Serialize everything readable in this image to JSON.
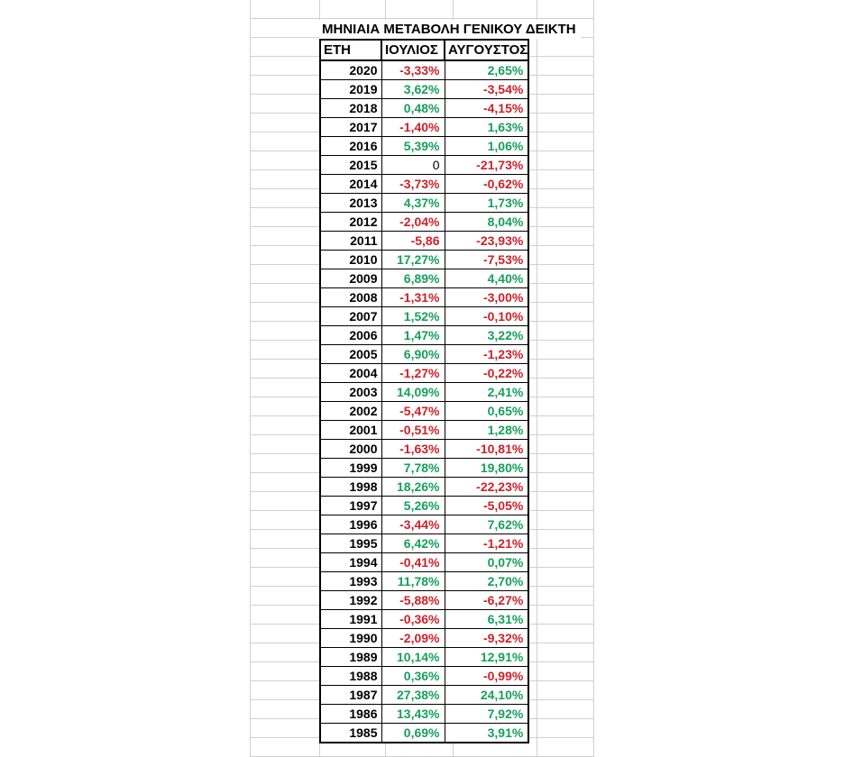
{
  "title": "ΜΗΝΙΑΙΑ ΜΕΤΑΒΟΛΗ ΓΕΝΙΚΟΥ ΔΕΙΚΤΗ",
  "columns": [
    "ΕΤΗ",
    "ΙΟΥΛΙΟΣ",
    "ΑΥΓΟΥΣΤΟΣ"
  ],
  "colors": {
    "positive": "#16A05A",
    "negative": "#CE2129",
    "neutral": "#000000",
    "gridline": "#D0D0D0",
    "border": "#000000"
  },
  "rows": [
    {
      "year": "2020",
      "july": "-3,33%",
      "august": "2,65%"
    },
    {
      "year": "2019",
      "july": "3,62%",
      "august": "-3,54%"
    },
    {
      "year": "2018",
      "july": "0,48%",
      "august": "-4,15%"
    },
    {
      "year": "2017",
      "july": "-1,40%",
      "august": "1,63%"
    },
    {
      "year": "2016",
      "july": "5,39%",
      "august": "1,06%"
    },
    {
      "year": "2015",
      "july": "0",
      "august": "-21,73%"
    },
    {
      "year": "2014",
      "july": "-3,73%",
      "august": "-0,62%"
    },
    {
      "year": "2013",
      "july": "4,37%",
      "august": "1,73%"
    },
    {
      "year": "2012",
      "july": "-2,04%",
      "august": "8,04%"
    },
    {
      "year": "2011",
      "july": "-5,86",
      "august": "-23,93%"
    },
    {
      "year": "2010",
      "july": "17,27%",
      "august": "-7,53%"
    },
    {
      "year": "2009",
      "july": "6,89%",
      "august": "4,40%"
    },
    {
      "year": "2008",
      "july": "-1,31%",
      "august": "-3,00%"
    },
    {
      "year": "2007",
      "july": "1,52%",
      "august": "-0,10%"
    },
    {
      "year": "2006",
      "july": "1,47%",
      "august": "3,22%"
    },
    {
      "year": "2005",
      "july": "6,90%",
      "august": "-1,23%"
    },
    {
      "year": "2004",
      "july": "-1,27%",
      "august": "-0,22%"
    },
    {
      "year": "2003",
      "july": "14,09%",
      "august": "2,41%"
    },
    {
      "year": "2002",
      "july": "-5,47%",
      "august": "0,65%"
    },
    {
      "year": "2001",
      "july": "-0,51%",
      "august": "1,28%"
    },
    {
      "year": "2000",
      "july": "-1,63%",
      "august": "-10,81%"
    },
    {
      "year": "1999",
      "july": "7,78%",
      "august": "19,80%"
    },
    {
      "year": "1998",
      "july": "18,26%",
      "august": "-22,23%"
    },
    {
      "year": "1997",
      "july": "5,26%",
      "august": "-5,05%"
    },
    {
      "year": "1996",
      "july": "-3,44%",
      "august": "7,62%"
    },
    {
      "year": "1995",
      "july": "6,42%",
      "august": "-1,21%"
    },
    {
      "year": "1994",
      "july": "-0,41%",
      "august": "0,07%"
    },
    {
      "year": "1993",
      "july": "11,78%",
      "august": "2,70%"
    },
    {
      "year": "1992",
      "july": "-5,88%",
      "august": "-6,27%"
    },
    {
      "year": "1991",
      "july": "-0,36%",
      "august": "6,31%"
    },
    {
      "year": "1990",
      "july": "-2,09%",
      "august": "-9,32%"
    },
    {
      "year": "1989",
      "july": "10,14%",
      "august": "12,91%"
    },
    {
      "year": "1988",
      "july": "0,36%",
      "august": "-0,99%"
    },
    {
      "year": "1987",
      "july": "27,38%",
      "august": "24,10%"
    },
    {
      "year": "1986",
      "july": "13,43%",
      "august": "7,92%"
    },
    {
      "year": "1985",
      "july": "0,69%",
      "august": "3,91%"
    }
  ]
}
